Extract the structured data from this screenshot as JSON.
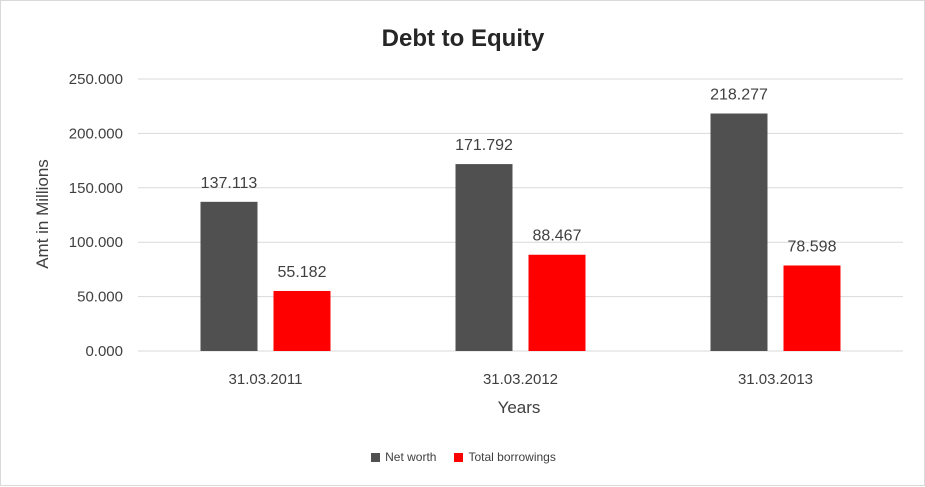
{
  "chart_data": {
    "type": "bar",
    "title": "Debt to Equity",
    "xlabel": "Years",
    "ylabel": "Amt in Millions",
    "categories": [
      "31.03.2011",
      "31.03.2012",
      "31.03.2013"
    ],
    "series": [
      {
        "name": "Net worth",
        "values": [
          137.113,
          171.792,
          218.277
        ],
        "color": "#505050"
      },
      {
        "name": "Total borrowings",
        "values": [
          55.182,
          88.467,
          78.598
        ],
        "color": "#ff0000"
      }
    ],
    "ylim": [
      0,
      250
    ],
    "y_ticks": [
      "0.000",
      "50.000",
      "100.000",
      "150.000",
      "200.000",
      "250.000"
    ],
    "data_labels": [
      [
        "137.113",
        "171.792",
        "218.277"
      ],
      [
        "55.182",
        "88.467",
        "78.598"
      ]
    ],
    "grid": true,
    "legend_position": "bottom"
  }
}
